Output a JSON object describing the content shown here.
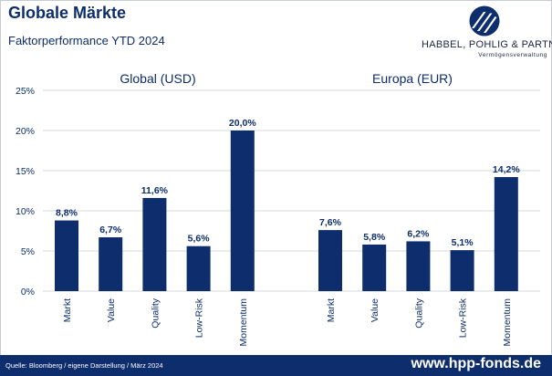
{
  "header": {
    "title": "Globale Märkte",
    "subtitle": "Faktorperformance YTD 2024"
  },
  "brand": {
    "name": "HABBEL, POHLIG & PARTNER",
    "tagline": "Vermögensverwaltung"
  },
  "footer": {
    "source": "Quelle: Bloomberg / eigene Darstellung / März 2024",
    "website": "www.hpp-fonds.de"
  },
  "colors": {
    "bar": "#0d2d6c",
    "footer": "#0d2d6c"
  },
  "chart_data": [
    {
      "type": "bar",
      "title": "Global (USD)",
      "categories": [
        "Markt",
        "Value",
        "Quality",
        "Low-Risk",
        "Momentum"
      ],
      "values": [
        8.8,
        6.7,
        11.6,
        5.6,
        20.0
      ],
      "value_labels": [
        "8,8%",
        "6,7%",
        "11,6%",
        "5,6%",
        "20,0%"
      ],
      "ylim": [
        0,
        25
      ],
      "yticks": [
        "0%",
        "5%",
        "10%",
        "15%",
        "20%",
        "25%"
      ],
      "grid": true
    },
    {
      "type": "bar",
      "title": "Europa (EUR)",
      "categories": [
        "Markt",
        "Value",
        "Quality",
        "Low-Risk",
        "Momentum"
      ],
      "values": [
        7.6,
        5.8,
        6.2,
        5.1,
        14.2
      ],
      "value_labels": [
        "7,6%",
        "5,8%",
        "6,2%",
        "5,1%",
        "14,2%"
      ],
      "ylim": [
        0,
        25
      ],
      "yticks": [
        "0%",
        "5%",
        "10%",
        "15%",
        "20%",
        "25%"
      ],
      "grid": true
    }
  ]
}
